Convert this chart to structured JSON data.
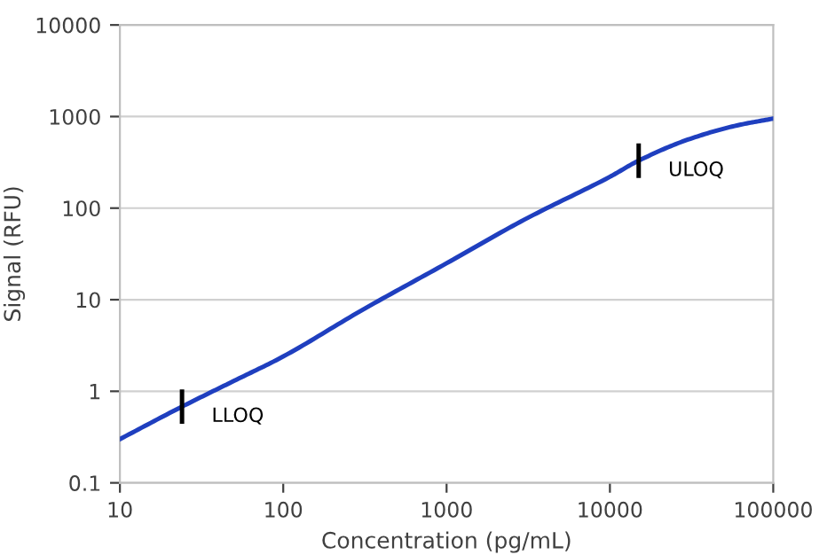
{
  "chart_data": {
    "type": "line",
    "xlabel": "Concentration (pg/mL)",
    "ylabel": "Signal (RFU)",
    "log": "xy",
    "grid": "y",
    "line_style": "solid",
    "series": [
      {
        "color": "#1f3fbf",
        "x": [
          10,
          24,
          50,
          100,
          300,
          1000,
          3000,
          10000,
          15000,
          30000,
          60000,
          100000
        ],
        "values": [
          0.3,
          0.68,
          1.3,
          2.4,
          7.6,
          25,
          75,
          220,
          330,
          560,
          800,
          950
        ]
      }
    ],
    "xlim": [
      10,
      100000
    ],
    "xticks": [
      10,
      100,
      1000,
      10000,
      100000
    ],
    "ylim": [
      0.1,
      10000
    ],
    "yticks": [
      0.1,
      1,
      10,
      100,
      1000,
      10000
    ],
    "annotations": [
      {
        "text": "LLOQ",
        "x": 24,
        "y": 0.68
      },
      {
        "text": "ULOQ",
        "x": 15000,
        "y": 330
      }
    ]
  }
}
